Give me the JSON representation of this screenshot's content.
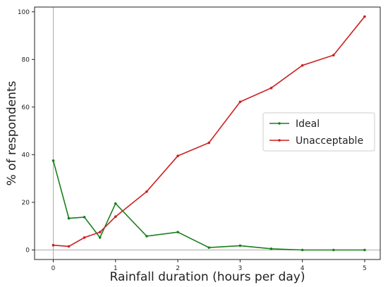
{
  "chart_data": {
    "type": "line",
    "title": "",
    "xlabel": "Rainfall duration (hours per day)",
    "ylabel": "% of respondents",
    "xlim": [
      -0.3,
      5.25
    ],
    "ylim": [
      -4,
      102
    ],
    "xticks": [
      0,
      1,
      2,
      3,
      4,
      5
    ],
    "yticks": [
      0,
      20,
      40,
      60,
      80,
      100
    ],
    "grid": false,
    "reference_lines": {
      "x": 0,
      "y": 0
    },
    "legend_position": "center-right",
    "series": [
      {
        "name": "Ideal",
        "color": "#1a7f1a",
        "x": [
          0,
          0.25,
          0.5,
          0.75,
          1,
          1.5,
          2,
          2.5,
          3,
          3.5,
          4,
          4.5,
          5
        ],
        "y": [
          37.5,
          13.3,
          13.8,
          5.2,
          19.5,
          5.8,
          7.5,
          1.0,
          1.8,
          0.5,
          0.0,
          0.0,
          0.0
        ]
      },
      {
        "name": "Unacceptable",
        "color": "#cc1f1f",
        "x": [
          0,
          0.25,
          0.5,
          0.75,
          1,
          1.5,
          2,
          2.5,
          3,
          3.5,
          4,
          4.5,
          5
        ],
        "y": [
          2.0,
          1.5,
          5.2,
          7.5,
          14.0,
          24.5,
          39.5,
          45.0,
          62.2,
          68.0,
          77.5,
          81.8,
          98.0
        ]
      }
    ]
  }
}
